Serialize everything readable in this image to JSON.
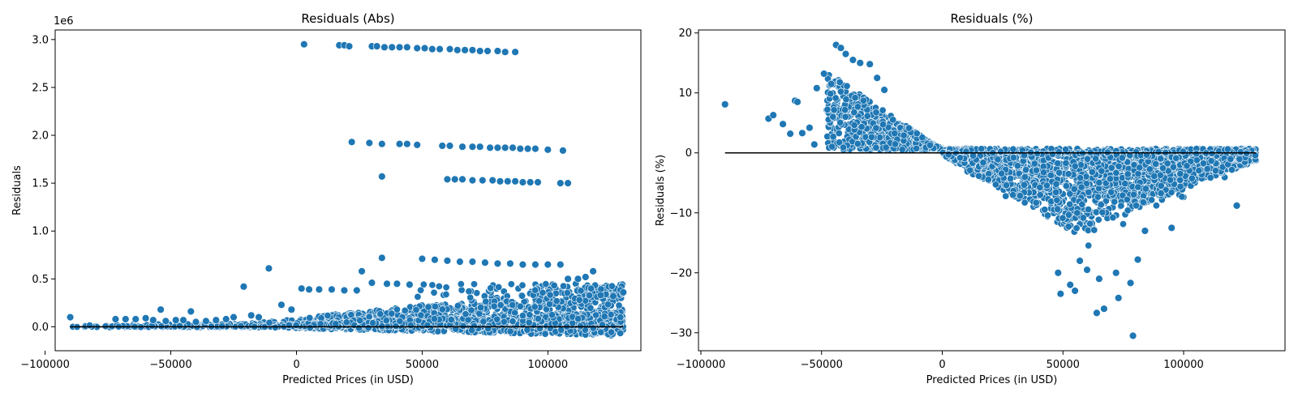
{
  "colors": {
    "point": "#1f77b4",
    "point_edge": "#ffffff",
    "zero_line": "#000000",
    "axes": "#000000"
  },
  "chart_data": [
    {
      "type": "scatter",
      "title": "Residuals (Abs)",
      "xlabel": "Predicted Prices (in USD)",
      "ylabel": "Residuals",
      "offset_text": "1e6",
      "xlim": [
        -96000,
        137000
      ],
      "ylim": [
        -0.25,
        3.1
      ],
      "xticks": [
        -100000,
        -50000,
        0,
        50000,
        100000
      ],
      "xtick_labels": [
        "−100000",
        "−50000",
        "0",
        "50000",
        "100000"
      ],
      "yticks": [
        0.0,
        0.5,
        1.0,
        1.5,
        2.0,
        2.5,
        3.0
      ],
      "ytick_labels": [
        "0.0",
        "0.5",
        "1.0",
        "1.5",
        "2.0",
        "2.5",
        "3.0"
      ],
      "zero_line": {
        "x": [
          -90000,
          130000
        ],
        "y": 0
      },
      "points": [
        [
          -90000,
          0.1
        ],
        [
          -72000,
          0.08
        ],
        [
          -68000,
          0.08
        ],
        [
          -64000,
          0.08
        ],
        [
          -60000,
          0.09
        ],
        [
          -57000,
          0.07
        ],
        [
          -54000,
          0.18
        ],
        [
          -52000,
          0.06
        ],
        [
          -48000,
          0.07
        ],
        [
          -45000,
          0.07
        ],
        [
          -42000,
          0.16
        ],
        [
          -40000,
          0.05
        ],
        [
          -36000,
          0.06
        ],
        [
          -32000,
          0.07
        ],
        [
          -28000,
          0.08
        ],
        [
          -25000,
          0.1
        ],
        [
          -21000,
          0.42
        ],
        [
          -18000,
          0.12
        ],
        [
          -15000,
          0.1
        ],
        [
          -11000,
          0.61
        ],
        [
          -6000,
          0.23
        ],
        [
          -2000,
          0.18
        ],
        [
          2000,
          0.4
        ],
        [
          5000,
          0.39
        ],
        [
          9000,
          0.39
        ],
        [
          14000,
          0.39
        ],
        [
          19000,
          0.38
        ],
        [
          24000,
          0.38
        ],
        [
          26000,
          0.58
        ],
        [
          30000,
          0.46
        ],
        [
          34000,
          0.72
        ],
        [
          36000,
          0.45
        ],
        [
          40000,
          0.45
        ],
        [
          45000,
          0.44
        ],
        [
          50000,
          0.71
        ],
        [
          55000,
          0.7
        ],
        [
          60000,
          0.69
        ],
        [
          65000,
          0.68
        ],
        [
          70000,
          0.68
        ],
        [
          75000,
          0.67
        ],
        [
          80000,
          0.66
        ],
        [
          85000,
          0.66
        ],
        [
          90000,
          0.65
        ],
        [
          95000,
          0.65
        ],
        [
          100000,
          0.65
        ],
        [
          105000,
          0.65
        ],
        [
          108000,
          0.5
        ],
        [
          112000,
          0.5
        ],
        [
          115000,
          0.52
        ],
        [
          118000,
          0.58
        ],
        [
          121000,
          0.33
        ],
        [
          126000,
          0.32
        ],
        [
          130000,
          0.36
        ],
        [
          3000,
          2.95
        ],
        [
          17000,
          2.94
        ],
        [
          19000,
          2.94
        ],
        [
          21000,
          2.93
        ],
        [
          30000,
          2.93
        ],
        [
          32000,
          2.93
        ],
        [
          35000,
          2.92
        ],
        [
          38000,
          2.92
        ],
        [
          41000,
          2.92
        ],
        [
          44000,
          2.92
        ],
        [
          48000,
          2.91
        ],
        [
          51000,
          2.91
        ],
        [
          54000,
          2.9
        ],
        [
          57000,
          2.9
        ],
        [
          61000,
          2.9
        ],
        [
          64000,
          2.89
        ],
        [
          67000,
          2.89
        ],
        [
          70000,
          2.89
        ],
        [
          73000,
          2.88
        ],
        [
          76000,
          2.88
        ],
        [
          80000,
          2.88
        ],
        [
          83000,
          2.87
        ],
        [
          87000,
          2.87
        ],
        [
          22000,
          1.93
        ],
        [
          29000,
          1.92
        ],
        [
          34000,
          1.91
        ],
        [
          41000,
          1.91
        ],
        [
          44000,
          1.91
        ],
        [
          48000,
          1.9
        ],
        [
          58000,
          1.89
        ],
        [
          61000,
          1.89
        ],
        [
          66000,
          1.88
        ],
        [
          70000,
          1.88
        ],
        [
          73000,
          1.88
        ],
        [
          77000,
          1.87
        ],
        [
          80000,
          1.87
        ],
        [
          83000,
          1.87
        ],
        [
          86000,
          1.87
        ],
        [
          89000,
          1.86
        ],
        [
          92000,
          1.86
        ],
        [
          95000,
          1.86
        ],
        [
          100000,
          1.85
        ],
        [
          106000,
          1.84
        ],
        [
          34000,
          1.57
        ],
        [
          60000,
          1.54
        ],
        [
          63000,
          1.54
        ],
        [
          66000,
          1.54
        ],
        [
          70000,
          1.53
        ],
        [
          74000,
          1.53
        ],
        [
          78000,
          1.53
        ],
        [
          81000,
          1.52
        ],
        [
          84000,
          1.52
        ],
        [
          87000,
          1.52
        ],
        [
          90000,
          1.51
        ],
        [
          93000,
          1.51
        ],
        [
          96000,
          1.51
        ],
        [
          105000,
          1.5
        ],
        [
          108000,
          1.5
        ]
      ],
      "cloud": {
        "x_range": [
          -90000,
          130000
        ],
        "dense_band": [
          -0.09,
          0.45
        ],
        "count": 2600
      }
    },
    {
      "type": "scatter",
      "title": "Residuals (%)",
      "xlabel": "Predicted Prices (in USD)",
      "ylabel": "Residuals (%)",
      "xlim": [
        -101000,
        142000
      ],
      "ylim": [
        -33,
        20.5
      ],
      "xticks": [
        -100000,
        -50000,
        0,
        50000,
        100000
      ],
      "xtick_labels": [
        "−100000",
        "−50000",
        "0",
        "50000",
        "100000"
      ],
      "yticks": [
        -30,
        -20,
        -10,
        0,
        10,
        20
      ],
      "ytick_labels": [
        "−30",
        "−20",
        "−10",
        "0",
        "10",
        "20"
      ],
      "zero_line": {
        "x": [
          -90000,
          130000
        ],
        "y": 0
      },
      "points": [
        [
          -90000,
          8.1
        ],
        [
          -72000,
          5.7
        ],
        [
          -70000,
          6.3
        ],
        [
          -66000,
          4.8
        ],
        [
          -63000,
          3.2
        ],
        [
          -61000,
          8.7
        ],
        [
          -60000,
          8.5
        ],
        [
          -58000,
          3.3
        ],
        [
          -55000,
          4.2
        ],
        [
          -53000,
          1.4
        ],
        [
          -52000,
          10.8
        ],
        [
          -49000,
          13.2
        ],
        [
          -46000,
          11.5
        ],
        [
          -44000,
          18.0
        ],
        [
          -42000,
          17.5
        ],
        [
          -40000,
          16.5
        ],
        [
          -37000,
          15.5
        ],
        [
          -34000,
          15.0
        ],
        [
          -30000,
          14.8
        ],
        [
          -27000,
          12.5
        ],
        [
          -24000,
          10.5
        ],
        [
          48000,
          -20.0
        ],
        [
          49000,
          -23.5
        ],
        [
          53000,
          -22.0
        ],
        [
          55000,
          -23.0
        ],
        [
          57000,
          -18.0
        ],
        [
          64000,
          -26.7
        ],
        [
          67000,
          -26.0
        ],
        [
          65000,
          -21.0
        ],
        [
          73000,
          -24.2
        ],
        [
          79000,
          -30.5
        ],
        [
          78000,
          -21.7
        ],
        [
          81000,
          -17.8
        ],
        [
          84000,
          -13.0
        ],
        [
          95000,
          -12.5
        ],
        [
          122000,
          -8.8
        ],
        [
          72000,
          -20.0
        ],
        [
          60000,
          -19.5
        ]
      ],
      "cloud": {
        "x_range": [
          -90000,
          130000
        ],
        "shape": "positive band for negative x, negative wedge for positive x",
        "count": 3000
      }
    }
  ]
}
